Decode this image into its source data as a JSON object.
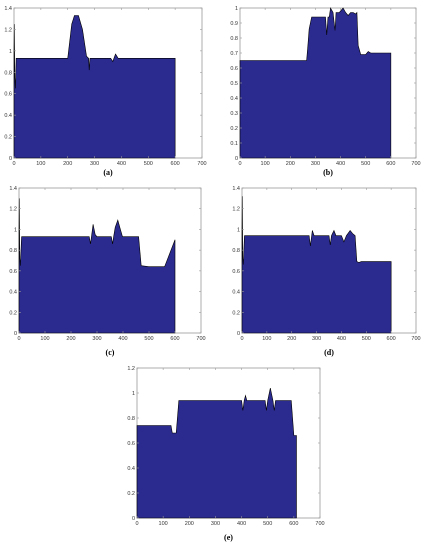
{
  "colors": {
    "fill": "#2b2a8f",
    "stroke": "#000000",
    "axis": "#999999"
  },
  "chart_data": [
    {
      "panel": "(a)",
      "type": "area",
      "xlim": [
        0,
        700
      ],
      "ylim": [
        0,
        1.4
      ],
      "xticks": [
        0,
        100,
        200,
        300,
        400,
        500,
        600,
        700
      ],
      "yticks": [
        0,
        0.2,
        0.4,
        0.6,
        0.8,
        1,
        1.2,
        1.4
      ],
      "x": [
        0,
        1,
        3,
        5,
        8,
        200,
        215,
        225,
        240,
        255,
        270,
        278,
        280,
        283,
        290,
        360,
        368,
        372,
        378,
        383,
        388,
        600
      ],
      "y": [
        1.0,
        1.25,
        0.75,
        0.65,
        0.93,
        0.93,
        1.25,
        1.33,
        1.33,
        1.2,
        0.95,
        0.93,
        0.82,
        0.93,
        0.93,
        0.93,
        0.9,
        0.93,
        0.97,
        0.95,
        0.93,
        0.93
      ]
    },
    {
      "panel": "(b)",
      "type": "area",
      "xlim": [
        0,
        700
      ],
      "ylim": [
        0,
        1.0
      ],
      "xticks": [
        0,
        100,
        200,
        300,
        400,
        500,
        600,
        700
      ],
      "yticks": [
        0,
        0.1,
        0.2,
        0.3,
        0.4,
        0.5,
        0.6,
        0.7,
        0.8,
        0.9,
        1
      ],
      "x": [
        0,
        265,
        270,
        275,
        285,
        340,
        345,
        350,
        355,
        360,
        370,
        378,
        382,
        395,
        410,
        420,
        430,
        440,
        450,
        460,
        465,
        470,
        480,
        500,
        510,
        520,
        600
      ],
      "y": [
        0.65,
        0.65,
        0.75,
        0.86,
        0.94,
        0.94,
        0.82,
        0.94,
        0.94,
        1.0,
        0.97,
        0.85,
        0.97,
        0.97,
        1.0,
        0.97,
        0.95,
        0.97,
        0.97,
        0.96,
        0.97,
        0.75,
        0.69,
        0.69,
        0.71,
        0.7,
        0.7
      ]
    },
    {
      "panel": "(c)",
      "type": "area",
      "xlim": [
        0,
        700
      ],
      "ylim": [
        0,
        1.4
      ],
      "xticks": [
        0,
        100,
        200,
        300,
        400,
        500,
        600,
        700
      ],
      "yticks": [
        0,
        0.2,
        0.4,
        0.6,
        0.8,
        1,
        1.2,
        1.4
      ],
      "x": [
        0,
        1,
        3,
        5,
        10,
        270,
        275,
        285,
        293,
        300,
        355,
        360,
        364,
        370,
        380,
        390,
        398,
        405,
        460,
        470,
        500,
        560,
        600
      ],
      "y": [
        1.0,
        1.3,
        0.72,
        0.65,
        0.93,
        0.93,
        0.86,
        1.05,
        0.95,
        0.93,
        0.93,
        0.86,
        0.93,
        1.02,
        1.09,
        1.0,
        0.93,
        0.93,
        0.93,
        0.65,
        0.64,
        0.64,
        0.9
      ]
    },
    {
      "panel": "(d)",
      "type": "area",
      "xlim": [
        0,
        700
      ],
      "ylim": [
        0,
        1.4
      ],
      "xticks": [
        0,
        100,
        200,
        300,
        400,
        500,
        600,
        700
      ],
      "yticks": [
        0,
        0.2,
        0.4,
        0.6,
        0.8,
        1,
        1.2,
        1.4
      ],
      "x": [
        0,
        1,
        3,
        5,
        10,
        270,
        275,
        283,
        290,
        350,
        355,
        360,
        370,
        378,
        390,
        400,
        410,
        420,
        435,
        445,
        455,
        462,
        470,
        480,
        500,
        600
      ],
      "y": [
        1.0,
        1.32,
        0.72,
        0.66,
        0.94,
        0.94,
        0.84,
        0.99,
        0.94,
        0.94,
        0.85,
        0.94,
        0.99,
        0.94,
        0.94,
        0.94,
        0.88,
        0.94,
        0.99,
        0.96,
        0.94,
        0.69,
        0.68,
        0.69,
        0.69,
        0.69
      ]
    },
    {
      "panel": "(e)",
      "type": "area",
      "xlim": [
        0,
        700
      ],
      "ylim": [
        0,
        1.2
      ],
      "xticks": [
        0,
        100,
        200,
        300,
        400,
        500,
        600,
        700
      ],
      "yticks": [
        0,
        0.2,
        0.4,
        0.6,
        0.8,
        1,
        1.2
      ],
      "x": [
        0,
        130,
        135,
        150,
        160,
        400,
        405,
        410,
        415,
        420,
        490,
        495,
        500,
        510,
        520,
        525,
        530,
        590,
        600,
        610
      ],
      "y": [
        0.74,
        0.74,
        0.68,
        0.68,
        0.94,
        0.94,
        0.86,
        0.94,
        0.98,
        0.94,
        0.94,
        0.86,
        0.94,
        1.04,
        0.94,
        0.86,
        0.94,
        0.94,
        0.66,
        0.66
      ]
    }
  ]
}
